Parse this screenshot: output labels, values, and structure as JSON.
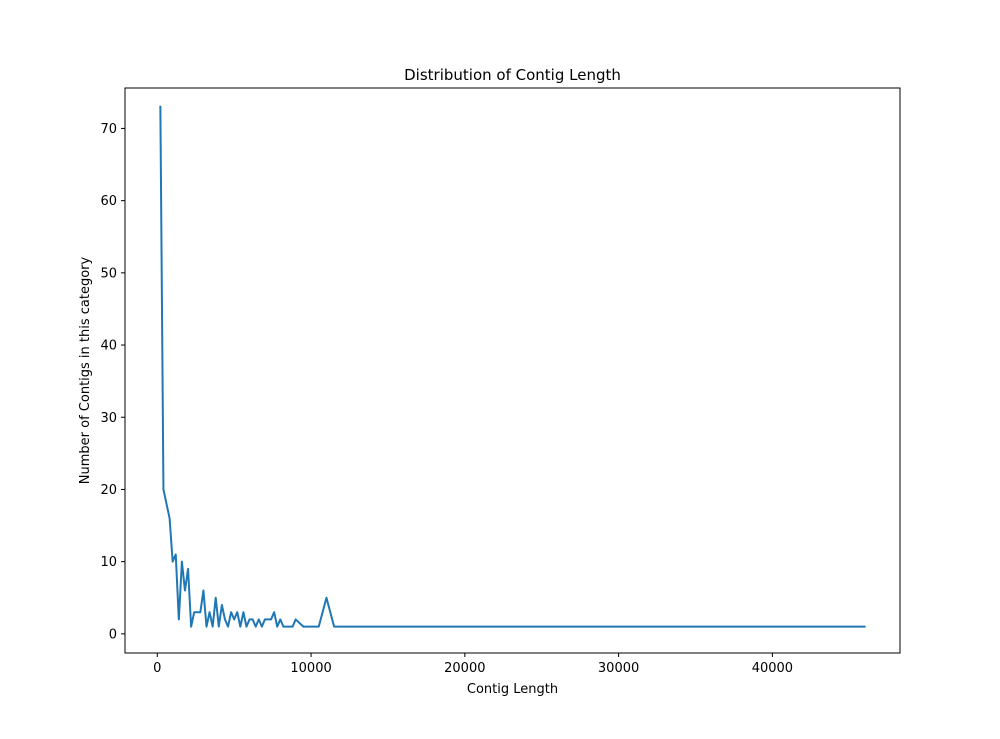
{
  "chart_data": {
    "type": "line",
    "title": "Distribution of Contig Length",
    "xlabel": "Contig Length",
    "ylabel": "Number of Contigs in this category",
    "xlim": [
      -2100,
      48300
    ],
    "ylim": [
      -2.65,
      75.6
    ],
    "x_ticks": [
      0,
      10000,
      20000,
      30000,
      40000
    ],
    "x_tick_labels": [
      "0",
      "10000",
      "20000",
      "30000",
      "40000"
    ],
    "y_ticks": [
      0,
      10,
      20,
      30,
      40,
      50,
      60,
      70
    ],
    "y_tick_labels": [
      "0",
      "10",
      "20",
      "30",
      "40",
      "50",
      "60",
      "70"
    ],
    "grid": false,
    "legend": "none",
    "series": [
      {
        "color": "#1f77b4",
        "x": [
          200,
          400,
          600,
          800,
          1000,
          1200,
          1400,
          1600,
          1800,
          2000,
          2200,
          2400,
          2600,
          2800,
          3000,
          3200,
          3400,
          3600,
          3800,
          4000,
          4200,
          4400,
          4600,
          4800,
          5000,
          5200,
          5400,
          5600,
          5800,
          6000,
          6200,
          6400,
          6600,
          6800,
          7000,
          7200,
          7400,
          7600,
          7800,
          8000,
          8200,
          8400,
          8600,
          8800,
          9000,
          9500,
          10000,
          10500,
          11000,
          11500,
          12000,
          46000
        ],
        "y": [
          73,
          20,
          18,
          16,
          10,
          11,
          2,
          10,
          6,
          9,
          1,
          3,
          3,
          3,
          6,
          1,
          3,
          1,
          5,
          1,
          4,
          2,
          1,
          3,
          2,
          3,
          1,
          3,
          1,
          2,
          2,
          1,
          2,
          1,
          2,
          2,
          2,
          3,
          1,
          2,
          1,
          1,
          1,
          1,
          2,
          1,
          1,
          1,
          5,
          1,
          1,
          1
        ]
      }
    ]
  }
}
